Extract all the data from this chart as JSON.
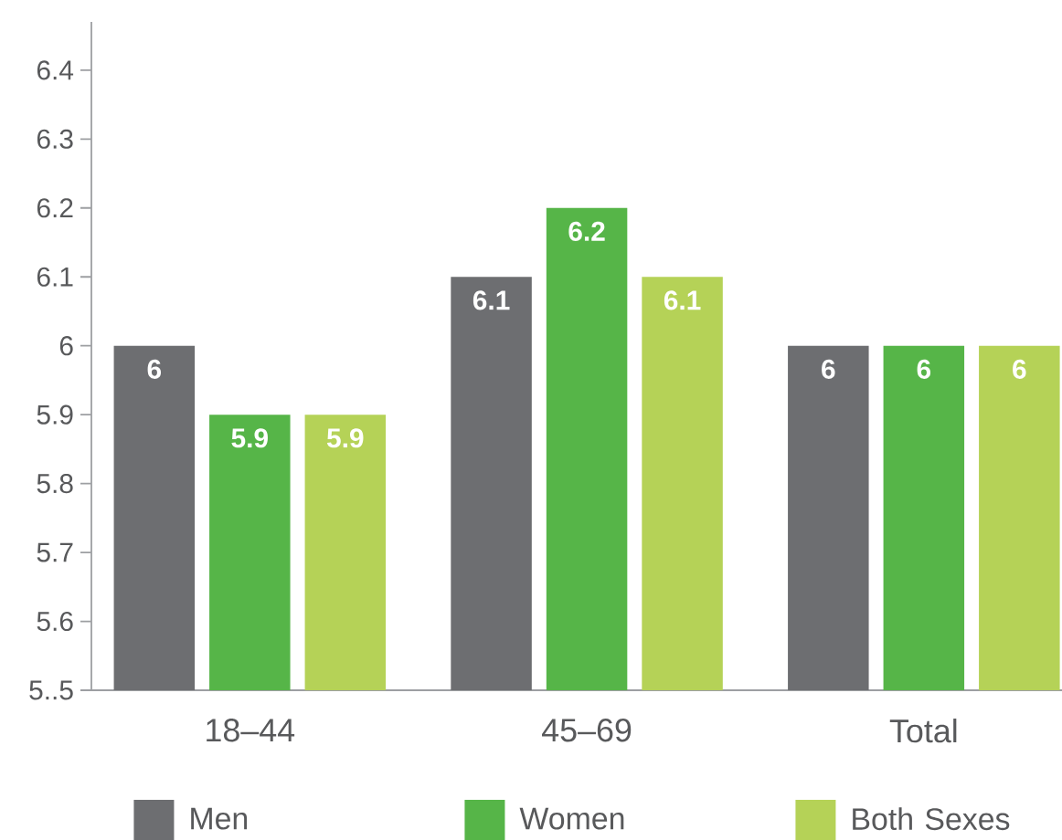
{
  "chart_data": {
    "type": "bar",
    "categories": [
      "18–44",
      "45–69",
      "Total"
    ],
    "series": [
      {
        "name": "Men",
        "color": "#6d6e71",
        "values": [
          6,
          6.1,
          6
        ]
      },
      {
        "name": "Women",
        "color": "#56b548",
        "values": [
          5.9,
          6.2,
          6
        ]
      },
      {
        "name": "Both Sexes",
        "color": "#b5d257",
        "values": [
          5.9,
          6.1,
          6
        ]
      }
    ],
    "ylim": [
      5.5,
      6.47
    ],
    "yticks": [
      {
        "value": 5.5,
        "label": "5..5"
      },
      5.6,
      5.7,
      5.8,
      5.9,
      6,
      6.1,
      6.2,
      6.3,
      6.4
    ],
    "data_labels": true,
    "legend": "bottom"
  }
}
